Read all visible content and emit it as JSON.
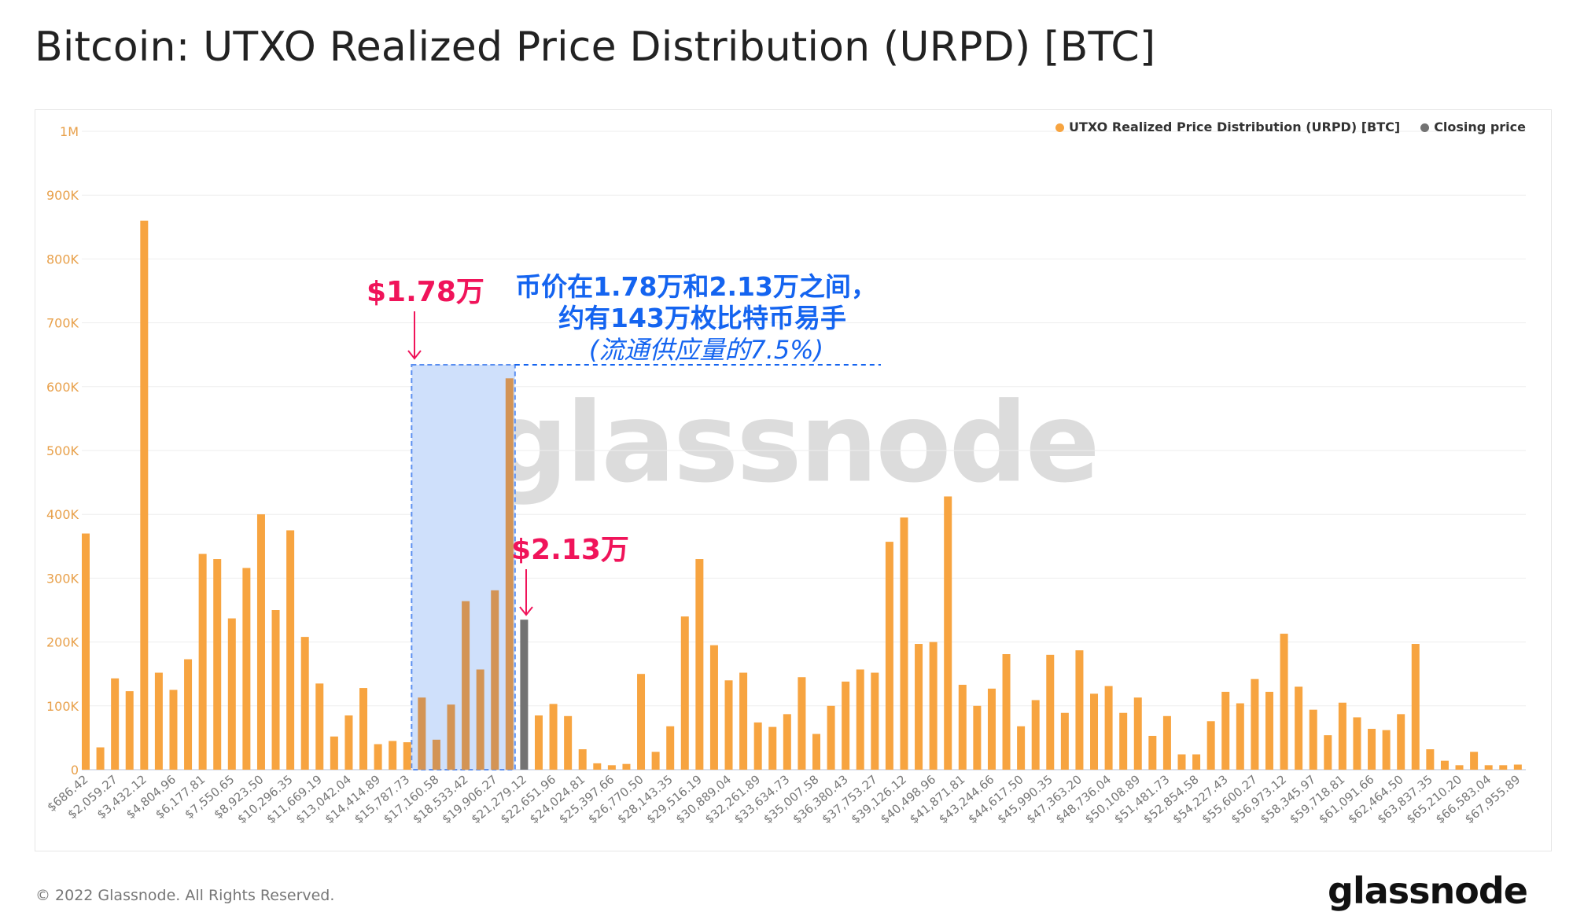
{
  "title": "Bitcoin: UTXO Realized Price Distribution (URPD) [BTC]",
  "footer": "© 2022 Glassnode. All Rights Reserved.",
  "logo": "glassnode",
  "watermark": "glassnode",
  "annotations": {
    "low_price": "$1.78万",
    "high_price": "$2.13万",
    "line1": "币价在1.78万和2.13万之间，",
    "line2": "约有143万枚比特币易手",
    "line3": "(流通供应量的7.5%)"
  },
  "colors": {
    "series": "#f7a440",
    "closing": "#737373",
    "annotation_red": "#f0145a",
    "annotation_blue": "#1464f0",
    "highlight": "#cfe0fb"
  },
  "chart_data": {
    "type": "bar",
    "title": "Bitcoin: UTXO Realized Price Distribution (URPD) [BTC]",
    "legend": {
      "placement": "top-right",
      "entries": [
        "UTXO Realized Price Distribution (URPD) [BTC]",
        "Closing price"
      ]
    },
    "ylim": [
      0,
      1000000
    ],
    "yticks": [
      "0",
      "100K",
      "200K",
      "300K",
      "400K",
      "500K",
      "600K",
      "700K",
      "800K",
      "900K",
      "1M"
    ],
    "grid": true,
    "xtick_labels": [
      "$686.42",
      "$2,059.27",
      "$3,432.12",
      "$4,804.96",
      "$6,177.81",
      "$7,550.65",
      "$8,923.50",
      "$10,296.35",
      "$11,669.19",
      "$13,042.04",
      "$14,414.89",
      "$15,787.73",
      "$17,160.58",
      "$18,533.42",
      "$19,906.27",
      "$21,279.12",
      "$22,651.96",
      "$24,024.81",
      "$25,397.66",
      "$26,770.50",
      "$28,143.35",
      "$29,516.19",
      "$30,889.04",
      "$32,261.89",
      "$33,634.73",
      "$35,007.58",
      "$36,380.43",
      "$37,753.27",
      "$39,126.12",
      "$40,498.96",
      "$41,871.81",
      "$43,244.66",
      "$44,617.50",
      "$45,990.35",
      "$47,363.20",
      "$48,736.04",
      "$50,108.89",
      "$51,481.73",
      "$52,854.58",
      "$54,227.43",
      "$55,600.27",
      "$56,973.12",
      "$58,345.97",
      "$59,718.81",
      "$61,091.66",
      "$62,464.50",
      "$63,837.35",
      "$65,210.20",
      "$66,583.04",
      "$67,955.89"
    ],
    "closing_price_bin_index": 30,
    "highlight_bin_range": [
      23,
      29
    ],
    "values": [
      370000,
      35000,
      143000,
      123000,
      860000,
      152000,
      125000,
      173000,
      338000,
      330000,
      237000,
      316000,
      400000,
      250000,
      375000,
      208000,
      135000,
      52000,
      85000,
      128000,
      40000,
      45000,
      43000,
      113000,
      47000,
      102000,
      264000,
      157000,
      281000,
      613000,
      235000,
      85000,
      103000,
      84000,
      32000,
      10000,
      7000,
      9000,
      150000,
      28000,
      68000,
      240000,
      330000,
      195000,
      140000,
      152000,
      74000,
      67000,
      87000,
      145000,
      56000,
      100000,
      138000,
      157000,
      152000,
      357000,
      395000,
      197000,
      200000,
      428000,
      133000,
      100000,
      127000,
      181000,
      68000,
      109000,
      180000,
      89000,
      187000,
      119000,
      131000,
      89000,
      113000,
      53000,
      84000,
      24000,
      24000,
      76000,
      122000,
      104000,
      142000,
      122000,
      213000,
      130000,
      94000,
      54000,
      105000,
      82000,
      64000,
      62000,
      87000,
      197000,
      32000,
      14000,
      7000,
      28000,
      7000,
      7000,
      8000
    ]
  }
}
